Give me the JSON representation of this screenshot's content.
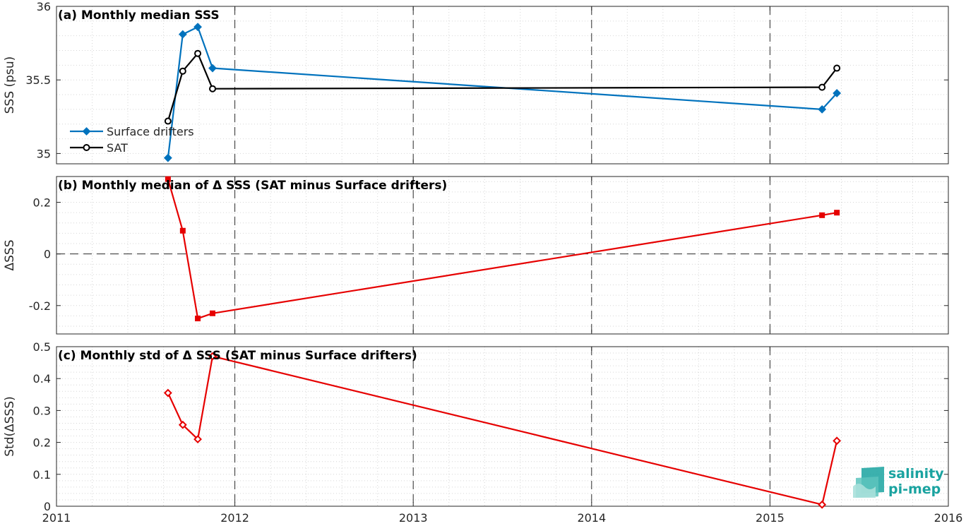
{
  "colors": {
    "drifters": "#0072BD",
    "sat": "#000000",
    "delta": "#E60000",
    "logo": "#1aa3a0"
  },
  "logo": {
    "line1": "salinity",
    "line2": "pi-mep"
  },
  "chart_data": [
    {
      "id": "a",
      "type": "line",
      "title": "(a) Monthly median SSS",
      "ylabel": "SSS (psu)",
      "xlim": [
        2011,
        2016
      ],
      "ylim": [
        34.93,
        36
      ],
      "yticks": [
        35,
        35.5,
        36
      ],
      "ytick_labels": [
        "35",
        "35.5",
        "36"
      ],
      "legend_position": "lower-left",
      "series": [
        {
          "name": "Surface drifters",
          "color_key": "drifters",
          "marker": "diamond-filled",
          "x": [
            2011.625,
            2011.708,
            2011.792,
            2011.875,
            2015.292,
            2015.375
          ],
          "y": [
            34.97,
            35.81,
            35.86,
            35.58,
            35.3,
            35.41
          ]
        },
        {
          "name": "SAT",
          "color_key": "sat",
          "marker": "circle-open",
          "x": [
            2011.625,
            2011.708,
            2011.792,
            2011.875,
            2015.292,
            2015.375
          ],
          "y": [
            35.22,
            35.56,
            35.68,
            35.44,
            35.45,
            35.58
          ]
        }
      ]
    },
    {
      "id": "b",
      "type": "line",
      "title": "(b) Monthly median of Δ SSS (SAT minus Surface drifters)",
      "ylabel": "ΔSSS",
      "xlim": [
        2011,
        2016
      ],
      "ylim": [
        -0.31,
        0.3
      ],
      "yticks": [
        -0.2,
        0,
        0.2
      ],
      "ytick_labels": [
        "-0.2",
        "0",
        "0.2"
      ],
      "zero_line": true,
      "series": [
        {
          "name": "",
          "color_key": "delta",
          "marker": "square-filled",
          "x": [
            2011.625,
            2011.708,
            2011.792,
            2011.875,
            2015.292,
            2015.375
          ],
          "y": [
            0.29,
            0.09,
            -0.25,
            -0.23,
            0.15,
            0.16
          ]
        }
      ]
    },
    {
      "id": "c",
      "type": "line",
      "title": "(c) Monthly std of Δ SSS (SAT minus Surface drifters)",
      "ylabel": "Std(ΔSSS)",
      "xlim": [
        2011,
        2016
      ],
      "ylim": [
        0,
        0.5
      ],
      "yticks": [
        0,
        0.1,
        0.2,
        0.3,
        0.4,
        0.5
      ],
      "ytick_labels": [
        "0",
        "0.1",
        "0.2",
        "0.3",
        "0.4",
        "0.5"
      ],
      "xticks": [
        2011,
        2012,
        2013,
        2014,
        2015,
        2016
      ],
      "xtick_labels": [
        "2011",
        "2012",
        "2013",
        "2014",
        "2015",
        "2016"
      ],
      "series": [
        {
          "name": "",
          "color_key": "delta",
          "marker": "diamond-open",
          "x": [
            2011.625,
            2011.708,
            2011.792,
            2011.875,
            2015.292,
            2015.375
          ],
          "y": [
            0.355,
            0.255,
            0.21,
            0.47,
            0.005,
            0.205
          ]
        }
      ]
    }
  ]
}
